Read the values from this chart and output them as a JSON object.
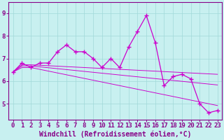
{
  "title": "",
  "xlabel": "Windchill (Refroidissement éolien,°C)",
  "ylabel": "",
  "bg_color": "#c8f0f0",
  "line_color": "#cc00cc",
  "grid_color": "#a0d8d8",
  "axis_color": "#880088",
  "spine_color": "#880088",
  "x": [
    0,
    1,
    2,
    3,
    4,
    5,
    6,
    7,
    8,
    9,
    10,
    11,
    12,
    13,
    14,
    15,
    16,
    17,
    18,
    19,
    20,
    21,
    22,
    23
  ],
  "y_main": [
    6.4,
    6.8,
    6.6,
    6.8,
    6.8,
    7.3,
    7.6,
    7.3,
    7.3,
    7.0,
    6.6,
    7.0,
    6.6,
    7.5,
    8.2,
    8.9,
    7.7,
    5.8,
    6.2,
    6.3,
    6.1,
    5.0,
    4.6,
    4.7
  ],
  "y_reg1": [
    6.4,
    6.72,
    6.72,
    6.7,
    6.68,
    6.66,
    6.64,
    6.62,
    6.6,
    6.58,
    6.56,
    6.54,
    6.52,
    6.5,
    6.48,
    6.46,
    6.44,
    6.42,
    6.4,
    6.38,
    6.36,
    6.34,
    6.32,
    6.3
  ],
  "y_reg2": [
    6.4,
    6.67,
    6.67,
    6.63,
    6.59,
    6.55,
    6.51,
    6.47,
    6.43,
    6.39,
    6.35,
    6.31,
    6.27,
    6.23,
    6.19,
    6.15,
    6.11,
    6.07,
    6.03,
    5.99,
    5.95,
    5.91,
    5.87,
    5.83
  ],
  "y_reg3": [
    6.4,
    6.6,
    6.6,
    6.52,
    6.44,
    6.36,
    6.28,
    6.2,
    6.12,
    6.04,
    5.96,
    5.88,
    5.8,
    5.72,
    5.64,
    5.56,
    5.48,
    5.4,
    5.32,
    5.24,
    5.16,
    5.08,
    5.0,
    4.92
  ],
  "ylim": [
    4.3,
    9.5
  ],
  "xlim": [
    -0.5,
    23.5
  ],
  "yticks": [
    5,
    6,
    7,
    8,
    9
  ],
  "xticks": [
    0,
    1,
    2,
    3,
    4,
    5,
    6,
    7,
    8,
    9,
    10,
    11,
    12,
    13,
    14,
    15,
    16,
    17,
    18,
    19,
    20,
    21,
    22,
    23
  ],
  "marker": "+",
  "markersize": 4,
  "linewidth": 0.9,
  "tick_fontsize": 6.5,
  "xlabel_fontsize": 7
}
